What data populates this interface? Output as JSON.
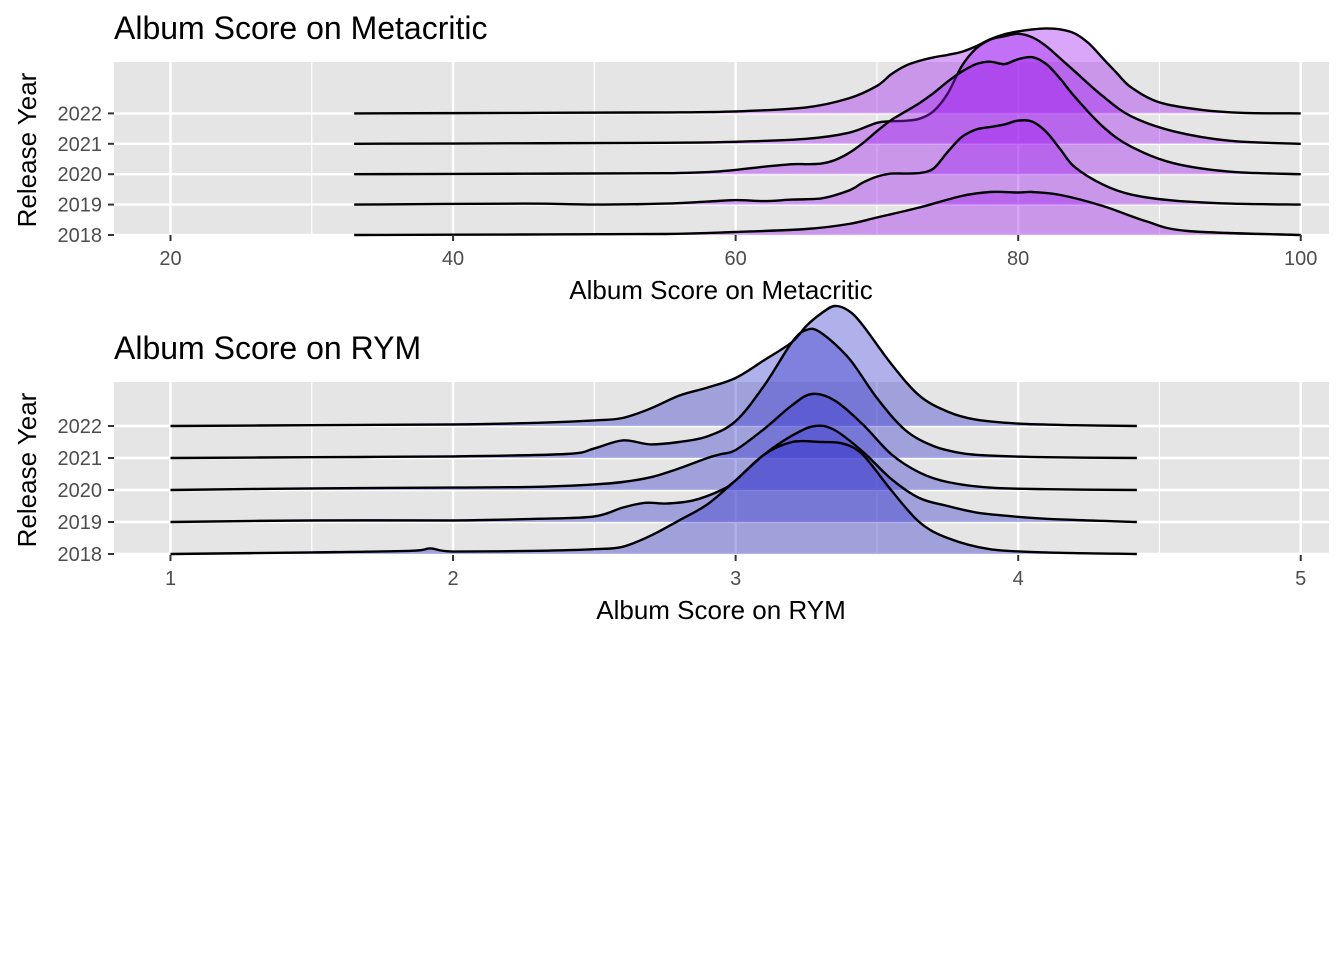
{
  "colors": {
    "panel_bg": "#E5E5E5",
    "grid": "#FFFFFF",
    "ridge_line": "#000000",
    "fill_metacritic": "#A020F0",
    "fill_rym": "#3A3ACD"
  },
  "chart_data": [
    {
      "type": "ridgeline",
      "title": "Album Score on Metacritic",
      "xlabel": "Album Score on Metacritic",
      "ylabel": "Release Year",
      "xlim": [
        16,
        102
      ],
      "x_ticks": [
        20,
        40,
        60,
        80,
        100
      ],
      "x_tick_labels": [
        "20",
        "40",
        "60",
        "80",
        "100"
      ],
      "categories": [
        "2018",
        "2019",
        "2020",
        "2021",
        "2022"
      ],
      "grid": true,
      "legend": "none",
      "fill_color": "#A020F0",
      "series": [
        {
          "name": "2018",
          "x": [
            33,
            45,
            55,
            60,
            65,
            68,
            70,
            73,
            76,
            78,
            80,
            81,
            83,
            86,
            89,
            92,
            100
          ],
          "density": [
            0,
            0.01,
            0.02,
            0.06,
            0.12,
            0.22,
            0.35,
            0.55,
            0.78,
            0.86,
            0.85,
            0.86,
            0.8,
            0.58,
            0.28,
            0.08,
            0
          ]
        },
        {
          "name": "2019",
          "x": [
            33,
            45,
            50,
            55,
            58,
            60,
            62,
            64,
            66,
            68,
            69,
            70,
            71,
            72,
            73,
            74,
            75,
            76,
            77,
            78,
            79,
            80,
            81,
            82,
            83,
            84,
            86,
            88,
            91,
            95,
            100
          ],
          "density": [
            0,
            0.02,
            0,
            0.02,
            0.06,
            0.09,
            0.07,
            0.1,
            0.12,
            0.28,
            0.44,
            0.56,
            0.62,
            0.62,
            0.63,
            0.72,
            1.05,
            1.35,
            1.5,
            1.55,
            1.6,
            1.68,
            1.66,
            1.45,
            1.1,
            0.75,
            0.4,
            0.2,
            0.08,
            0.02,
            0
          ]
        },
        {
          "name": "2020",
          "x": [
            33,
            45,
            55,
            59,
            62,
            64,
            65,
            66,
            67,
            68,
            69,
            70,
            71,
            72,
            73,
            74,
            75,
            76,
            77,
            78,
            79,
            80,
            81,
            82,
            83,
            84,
            86,
            88,
            91,
            95,
            100
          ],
          "density": [
            0,
            0.01,
            0.02,
            0.06,
            0.15,
            0.2,
            0.2,
            0.21,
            0.28,
            0.42,
            0.62,
            0.86,
            1.08,
            1.25,
            1.42,
            1.62,
            1.85,
            2.05,
            2.2,
            2.25,
            2.2,
            2.3,
            2.34,
            2.2,
            1.9,
            1.55,
            0.95,
            0.55,
            0.22,
            0.05,
            0
          ]
        },
        {
          "name": "2021",
          "x": [
            33,
            45,
            55,
            60,
            65,
            68,
            70,
            71,
            72,
            73,
            74,
            75,
            76,
            77,
            78,
            79,
            80,
            81,
            82,
            83,
            84,
            86,
            88,
            91,
            95,
            100
          ],
          "density": [
            0,
            0.01,
            0.02,
            0.04,
            0.1,
            0.22,
            0.42,
            0.45,
            0.46,
            0.5,
            0.65,
            1.0,
            1.55,
            1.9,
            2.08,
            2.15,
            2.2,
            2.13,
            1.95,
            1.7,
            1.45,
            0.95,
            0.55,
            0.25,
            0.06,
            0
          ]
        },
        {
          "name": "2022",
          "x": [
            33,
            45,
            55,
            60,
            65,
            68,
            70,
            71,
            72,
            73,
            74,
            75,
            76,
            77,
            78,
            79,
            80,
            81,
            82,
            83,
            84,
            85,
            86,
            87,
            88,
            90,
            93,
            96,
            100
          ],
          "density": [
            0,
            0.01,
            0.02,
            0.04,
            0.12,
            0.3,
            0.55,
            0.78,
            0.95,
            1.05,
            1.12,
            1.17,
            1.23,
            1.34,
            1.48,
            1.58,
            1.64,
            1.68,
            1.7,
            1.68,
            1.6,
            1.4,
            1.1,
            0.8,
            0.52,
            0.22,
            0.07,
            0.01,
            0
          ]
        }
      ]
    },
    {
      "type": "ridgeline",
      "title": "Album Score on RYM",
      "xlabel": "Album Score on RYM",
      "ylabel": "Release Year",
      "xlim": [
        0.8,
        5.1
      ],
      "x_ticks": [
        1,
        2,
        3,
        4,
        5
      ],
      "x_tick_labels": [
        "1",
        "2",
        "3",
        "4",
        "5"
      ],
      "categories": [
        "2018",
        "2019",
        "2020",
        "2021",
        "2022"
      ],
      "grid": true,
      "legend": "none",
      "fill_color": "#3A3ACD",
      "series": [
        {
          "name": "2018",
          "x": [
            1.0,
            1.5,
            1.85,
            1.92,
            2.0,
            2.3,
            2.5,
            2.6,
            2.7,
            2.8,
            2.9,
            3.0,
            3.1,
            3.2,
            3.3,
            3.38,
            3.45,
            3.55,
            3.65,
            3.75,
            3.9,
            4.1,
            4.42
          ],
          "density": [
            0,
            0.02,
            0.04,
            0.07,
            0.03,
            0.04,
            0.06,
            0.09,
            0.23,
            0.42,
            0.62,
            0.92,
            1.24,
            1.4,
            1.4,
            1.38,
            1.24,
            0.8,
            0.4,
            0.2,
            0.06,
            0.02,
            0
          ]
        },
        {
          "name": "2019",
          "x": [
            1.0,
            1.5,
            2.0,
            2.3,
            2.5,
            2.6,
            2.68,
            2.75,
            2.85,
            2.95,
            3.0,
            3.1,
            3.2,
            3.28,
            3.35,
            3.45,
            3.55,
            3.65,
            3.75,
            3.85,
            3.95,
            4.1,
            4.42
          ],
          "density": [
            0,
            0.02,
            0.02,
            0.04,
            0.07,
            0.18,
            0.24,
            0.23,
            0.27,
            0.4,
            0.52,
            0.84,
            1.08,
            1.2,
            1.15,
            0.88,
            0.54,
            0.3,
            0.2,
            0.12,
            0.08,
            0.04,
            0
          ]
        },
        {
          "name": "2020",
          "x": [
            1.0,
            1.5,
            2.0,
            2.3,
            2.5,
            2.6,
            2.7,
            2.8,
            2.9,
            2.95,
            3.0,
            3.1,
            3.2,
            3.27,
            3.35,
            3.45,
            3.55,
            3.65,
            3.75,
            3.9,
            4.1,
            4.42
          ],
          "density": [
            0,
            0.02,
            0.03,
            0.04,
            0.07,
            0.1,
            0.16,
            0.27,
            0.4,
            0.45,
            0.5,
            0.76,
            1.06,
            1.2,
            1.12,
            0.82,
            0.45,
            0.22,
            0.1,
            0.03,
            0.01,
            0
          ]
        },
        {
          "name": "2021",
          "x": [
            1.0,
            1.5,
            2.0,
            2.4,
            2.5,
            2.6,
            2.7,
            2.8,
            2.9,
            3.0,
            3.1,
            3.2,
            3.25,
            3.3,
            3.4,
            3.5,
            3.6,
            3.7,
            3.8,
            3.9,
            4.1,
            4.42
          ],
          "density": [
            0,
            0.01,
            0.02,
            0.05,
            0.12,
            0.22,
            0.17,
            0.2,
            0.27,
            0.46,
            0.9,
            1.45,
            1.6,
            1.57,
            1.25,
            0.75,
            0.35,
            0.15,
            0.06,
            0.03,
            0.01,
            0
          ]
        },
        {
          "name": "2022",
          "x": [
            1.0,
            1.5,
            2.0,
            2.3,
            2.5,
            2.6,
            2.7,
            2.8,
            2.9,
            3.0,
            3.1,
            3.2,
            3.25,
            3.3,
            3.35,
            3.4,
            3.45,
            3.55,
            3.65,
            3.75,
            3.85,
            4.0,
            4.2,
            4.42
          ],
          "density": [
            0,
            0.01,
            0.02,
            0.04,
            0.07,
            0.1,
            0.22,
            0.38,
            0.48,
            0.6,
            0.82,
            1.05,
            1.25,
            1.4,
            1.5,
            1.44,
            1.26,
            0.78,
            0.38,
            0.18,
            0.08,
            0.03,
            0.01,
            0
          ]
        }
      ]
    }
  ]
}
